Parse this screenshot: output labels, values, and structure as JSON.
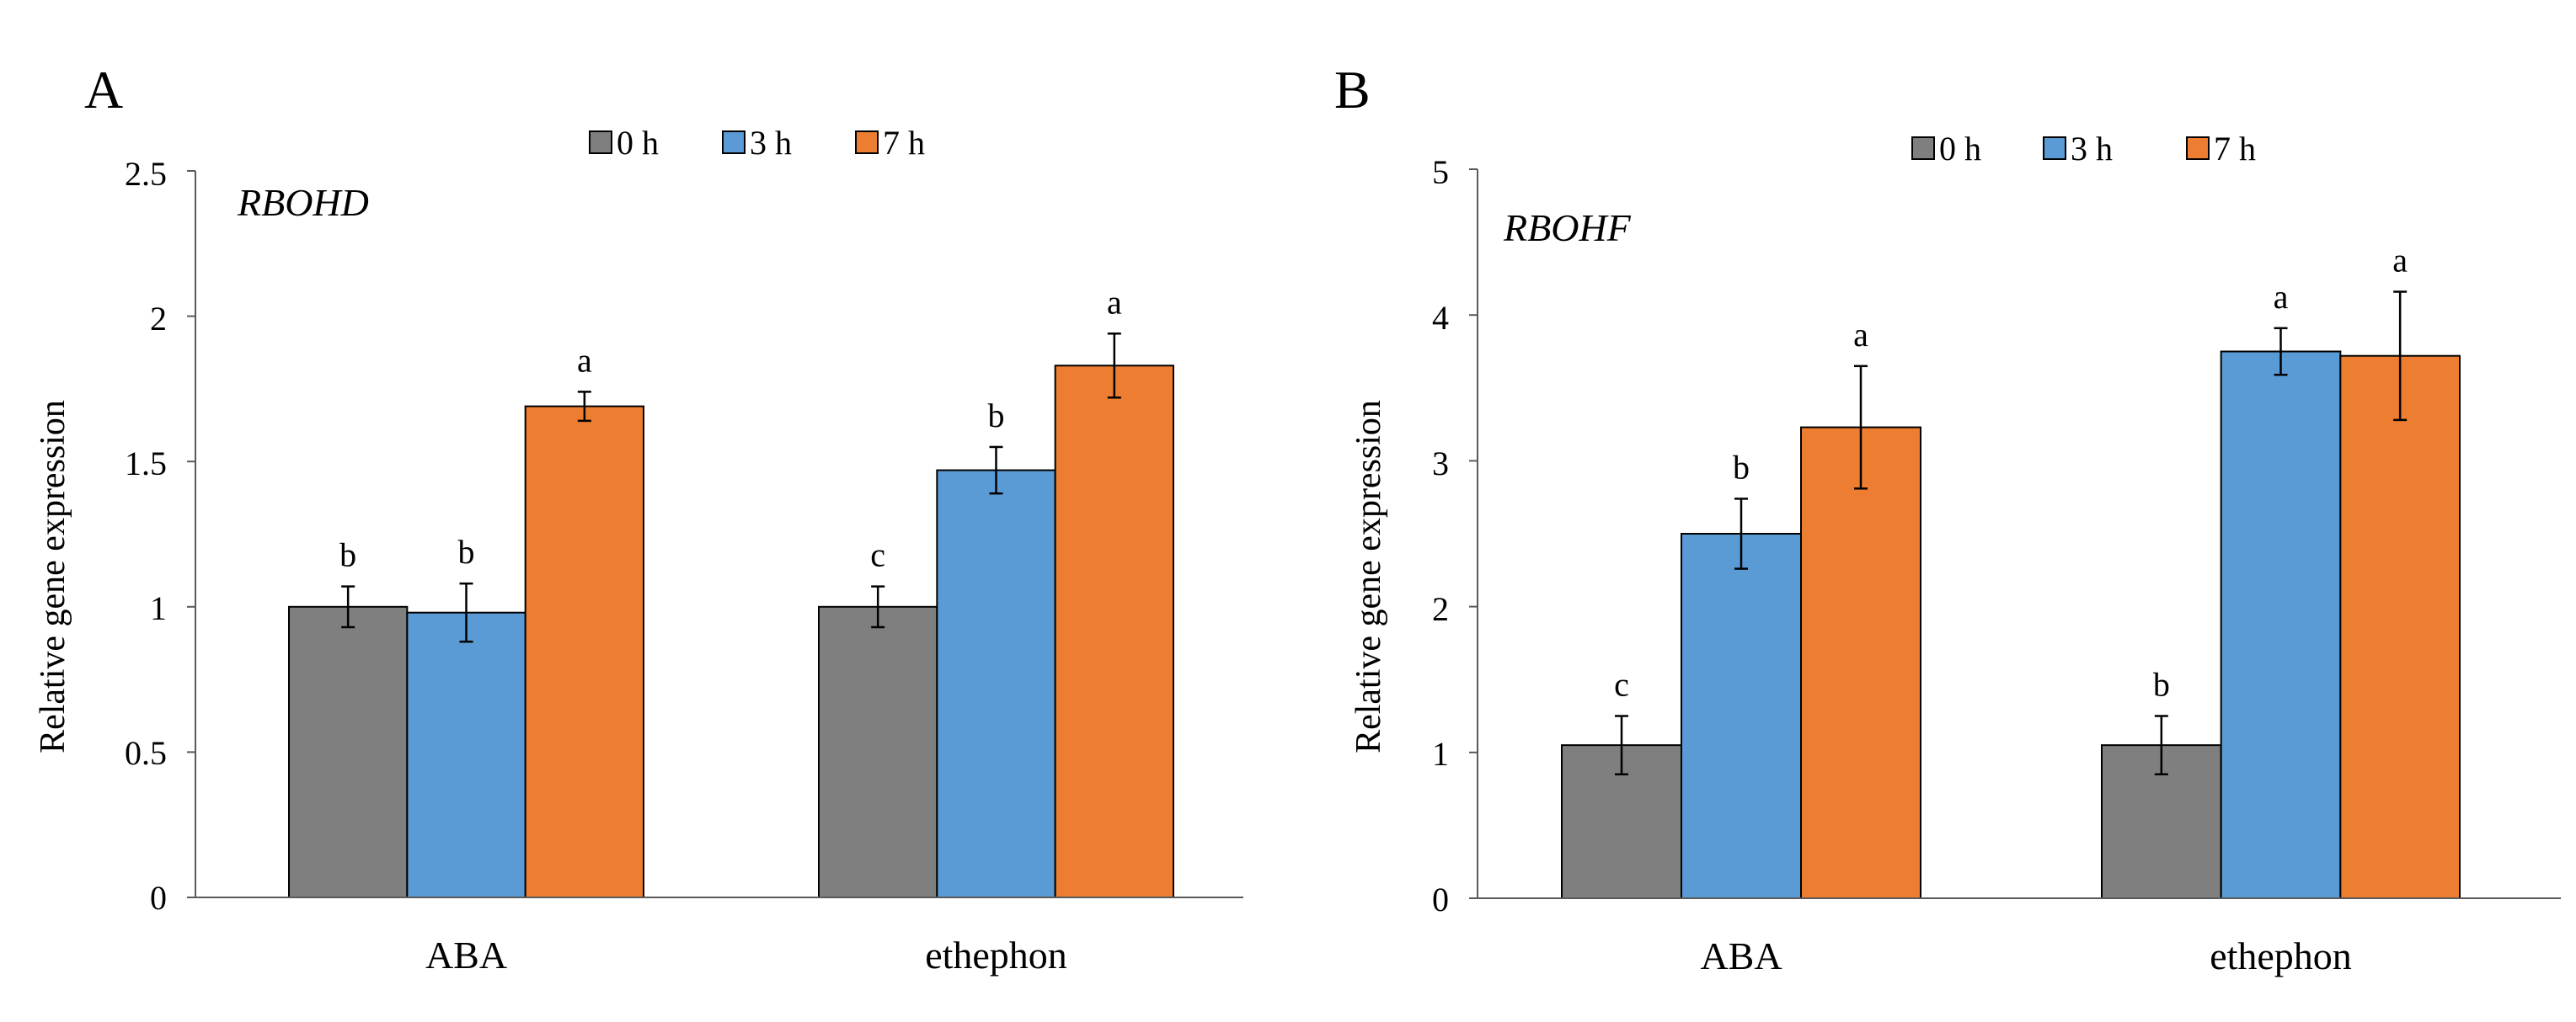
{
  "figure": {
    "panels": [
      {
        "letter": "A",
        "gene": "RBOHD",
        "ylabel": "Relative gene expression",
        "ticks": [
          "0",
          "0.5",
          "1",
          "1.5",
          "2",
          "2.5"
        ],
        "legend": [
          "0 h",
          "3 h",
          "7 h"
        ]
      },
      {
        "letter": "B",
        "gene": "RBOHF",
        "ylabel": "Relative gene expression",
        "ticks": [
          "0",
          "1",
          "2",
          "3",
          "4",
          "5"
        ],
        "legend": [
          "0 h",
          "3 h",
          "7 h"
        ]
      }
    ]
  },
  "colors": {
    "0 h": "#7f7f7f",
    "3 h": "#5b9bd5",
    "7 h": "#ed7d31"
  },
  "chart_data": [
    {
      "type": "bar",
      "panel": "A",
      "title": "RBOHD",
      "xlabel": "",
      "ylabel": "Relative gene expression",
      "ylim": [
        0,
        2.5
      ],
      "yticks": [
        0,
        0.5,
        1,
        1.5,
        2,
        2.5
      ],
      "grid": false,
      "legend_position": "top-center",
      "categories": [
        "ABA",
        "ethephon"
      ],
      "series": [
        {
          "name": "0 h",
          "color": "#7f7f7f",
          "values": [
            1.0,
            1.0
          ],
          "errors": [
            0.07,
            0.07
          ],
          "letters": [
            "b",
            "c"
          ]
        },
        {
          "name": "3 h",
          "color": "#5b9bd5",
          "values": [
            0.98,
            1.47
          ],
          "errors": [
            0.1,
            0.08
          ],
          "letters": [
            "b",
            "b"
          ]
        },
        {
          "name": "7 h",
          "color": "#ed7d31",
          "values": [
            1.69,
            1.83
          ],
          "errors": [
            0.05,
            0.11
          ],
          "letters": [
            "a",
            "a"
          ]
        }
      ]
    },
    {
      "type": "bar",
      "panel": "B",
      "title": "RBOHF",
      "xlabel": "",
      "ylabel": "Relative gene expression",
      "ylim": [
        0,
        5
      ],
      "yticks": [
        0,
        1,
        2,
        3,
        4,
        5
      ],
      "grid": false,
      "legend_position": "top-center",
      "categories": [
        "ABA",
        "ethephon"
      ],
      "series": [
        {
          "name": "0 h",
          "color": "#7f7f7f",
          "values": [
            1.05,
            1.05
          ],
          "errors": [
            0.2,
            0.2
          ],
          "letters": [
            "c",
            "b"
          ]
        },
        {
          "name": "3 h",
          "color": "#5b9bd5",
          "values": [
            2.5,
            3.75
          ],
          "errors": [
            0.24,
            0.16
          ],
          "letters": [
            "b",
            "a"
          ]
        },
        {
          "name": "7 h",
          "color": "#ed7d31",
          "values": [
            3.23,
            3.72
          ],
          "errors": [
            0.42,
            0.44
          ],
          "letters": [
            "a",
            "a"
          ]
        }
      ]
    }
  ]
}
